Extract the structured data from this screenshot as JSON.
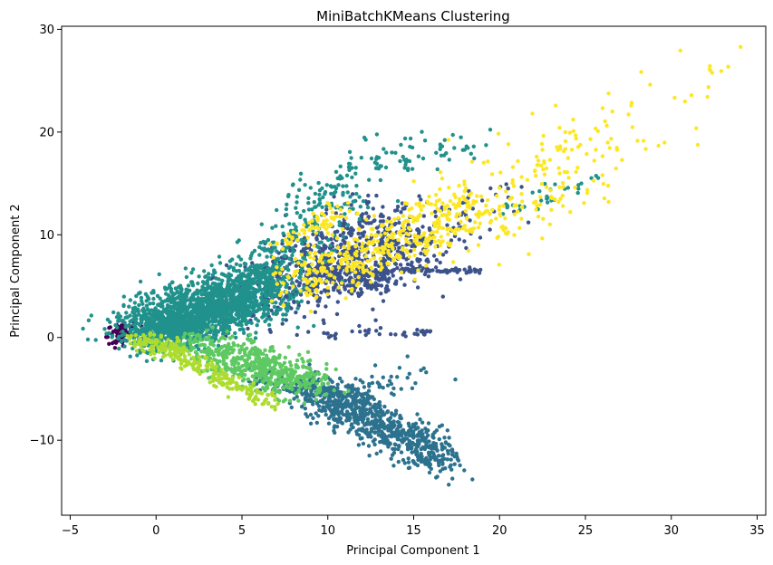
{
  "chart_data": {
    "type": "scatter",
    "title": "MiniBatchKMeans Clustering",
    "xlabel": "Principal Component 1",
    "ylabel": "Principal Component 2",
    "xlim": [
      -5.5,
      35.5
    ],
    "ylim": [
      -17.3,
      30.3
    ],
    "xticks": [
      -5,
      0,
      5,
      10,
      15,
      20,
      25,
      30,
      35
    ],
    "yticks": [
      -10,
      0,
      10,
      20,
      30
    ],
    "grid": false,
    "legend": "none",
    "colormap": "viridis",
    "clusters": [
      {
        "cluster": 0,
        "color": "#440154",
        "segments": [
          {
            "x0": -3.0,
            "y0": 0.0,
            "x1": -0.8,
            "y1": 1.5,
            "spread": 0.45,
            "count": 40
          },
          {
            "x0": -2.5,
            "y0": -0.5,
            "x1": -1.2,
            "y1": 0.6,
            "spread": 0.4,
            "count": 20
          }
        ]
      },
      {
        "cluster": 1,
        "color": "#3b528b",
        "segments": [
          {
            "x0": 6.0,
            "y0": 4.0,
            "x1": 15.0,
            "y1": 9.0,
            "spread": 1.6,
            "count": 520
          },
          {
            "x0": 8.0,
            "y0": 6.0,
            "x1": 13.0,
            "y1": 12.0,
            "spread": 1.4,
            "count": 220
          },
          {
            "x0": 11.0,
            "y0": 4.5,
            "x1": 13.5,
            "y1": 6.5,
            "spread": 0.6,
            "count": 80
          },
          {
            "x0": 13.5,
            "y0": 6.5,
            "x1": 19.0,
            "y1": 6.5,
            "spread": 0.1,
            "count": 60
          },
          {
            "x0": 8.0,
            "y0": 0.4,
            "x1": 16.0,
            "y1": 0.5,
            "spread": 0.2,
            "count": 40
          },
          {
            "x0": 14.0,
            "y0": 9.0,
            "x1": 20.0,
            "y1": 14.0,
            "spread": 1.2,
            "count": 60
          }
        ]
      },
      {
        "cluster": 2,
        "color": "#2c728e",
        "segments": [
          {
            "x0": 9.0,
            "y0": -5.0,
            "x1": 16.5,
            "y1": -11.5,
            "spread": 0.9,
            "count": 750
          },
          {
            "x0": 6.0,
            "y0": -4.0,
            "x1": 9.0,
            "y1": -5.0,
            "spread": 0.6,
            "count": 70
          },
          {
            "x0": 10.0,
            "y0": -6.5,
            "x1": 15.0,
            "y1": -3.5,
            "spread": 0.8,
            "count": 60
          },
          {
            "x0": 13.0,
            "y0": -11.0,
            "x1": 17.5,
            "y1": -13.0,
            "spread": 0.7,
            "count": 25
          }
        ]
      },
      {
        "cluster": 3,
        "color": "#21918c",
        "segments": [
          {
            "x0": -1.0,
            "y0": 0.5,
            "x1": 6.0,
            "y1": 4.0,
            "spread": 1.3,
            "count": 1200
          },
          {
            "x0": 0.0,
            "y0": 1.5,
            "x1": 8.0,
            "y1": 6.5,
            "spread": 1.2,
            "count": 500
          },
          {
            "x0": 4.0,
            "y0": 4.0,
            "x1": 11.0,
            "y1": 14.0,
            "spread": 1.1,
            "count": 260
          },
          {
            "x0": 9.0,
            "y0": 14.0,
            "x1": 14.0,
            "y1": 18.0,
            "spread": 0.9,
            "count": 60
          },
          {
            "x0": 14.5,
            "y0": 17.0,
            "x1": 19.0,
            "y1": 19.5,
            "spread": 0.8,
            "count": 40
          },
          {
            "x0": 20.0,
            "y0": 12.5,
            "x1": 26.0,
            "y1": 15.5,
            "spread": 0.5,
            "count": 30
          },
          {
            "x0": 1.0,
            "y0": 1.0,
            "x1": 2.0,
            "y1": 1.5,
            "spread": 0.6,
            "count": 200
          }
        ]
      },
      {
        "cluster": 4,
        "color": "#5ec962",
        "segments": [
          {
            "x0": 2.5,
            "y0": -0.5,
            "x1": 9.5,
            "y1": -4.5,
            "spread": 0.8,
            "count": 420
          },
          {
            "x0": 1.0,
            "y0": -1.0,
            "x1": 8.0,
            "y1": -5.5,
            "spread": 0.6,
            "count": 120
          }
        ]
      },
      {
        "cluster": 5,
        "color": "#addc30",
        "segments": [
          {
            "x0": -1.0,
            "y0": -0.3,
            "x1": 1.5,
            "y1": -1.6,
            "spread": 0.45,
            "count": 120
          },
          {
            "x0": 1.5,
            "y0": -2.0,
            "x1": 7.0,
            "y1": -6.5,
            "spread": 0.4,
            "count": 140
          }
        ]
      },
      {
        "cluster": 6,
        "color": "#fde725",
        "segments": [
          {
            "x0": 8.0,
            "y0": 5.0,
            "x1": 19.0,
            "y1": 13.0,
            "spread": 1.3,
            "count": 400
          },
          {
            "x0": 16.0,
            "y0": 11.0,
            "x1": 27.0,
            "y1": 18.0,
            "spread": 2.0,
            "count": 170
          },
          {
            "x0": 22.0,
            "y0": 18.0,
            "x1": 33.0,
            "y1": 26.0,
            "spread": 1.8,
            "count": 45
          },
          {
            "x0": 7.0,
            "y0": 9.0,
            "x1": 11.0,
            "y1": 12.5,
            "spread": 0.5,
            "count": 70
          }
        ]
      }
    ]
  }
}
